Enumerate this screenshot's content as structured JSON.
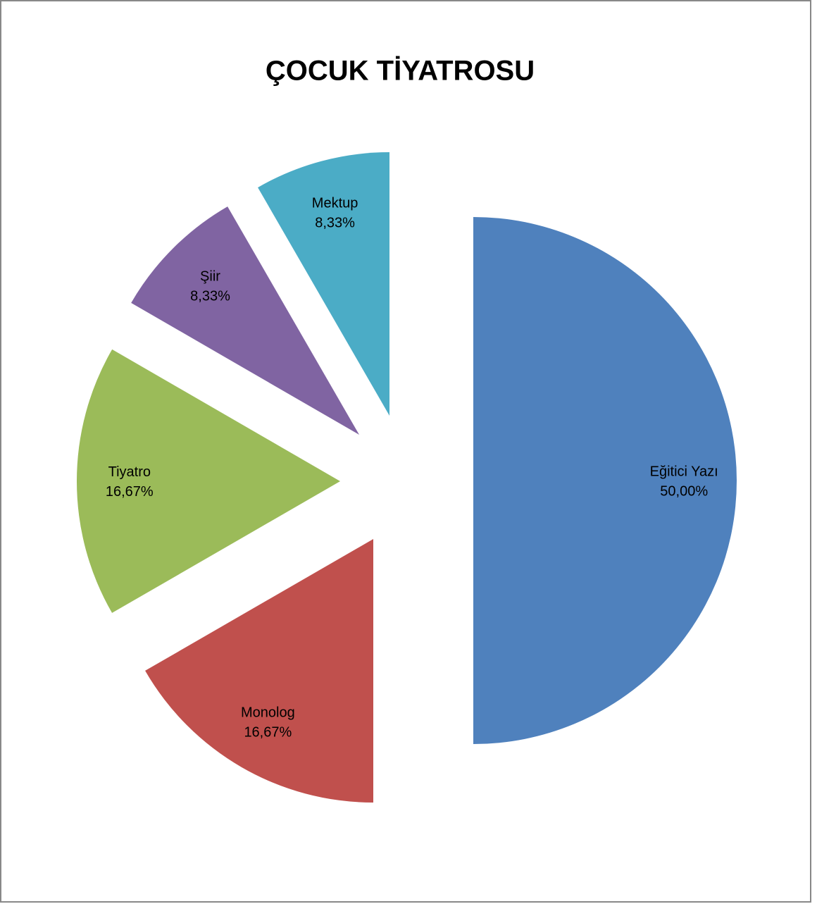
{
  "chart_data": {
    "type": "pie",
    "title": "ÇOCUK TİYATROSU",
    "categories": [
      "Eğitici Yazı",
      "Monolog",
      "Tiyatro",
      "Şiir",
      "Mektup"
    ],
    "values": [
      50,
      16.67,
      16.67,
      8.33,
      8.33
    ],
    "value_labels": [
      "50,00%",
      "16,67%",
      "16,67%",
      "8,33%",
      "8,33%"
    ],
    "colors": [
      "#4f81bd",
      "#c0504d",
      "#9bbb59",
      "#8064a2",
      "#4bacc6"
    ]
  }
}
